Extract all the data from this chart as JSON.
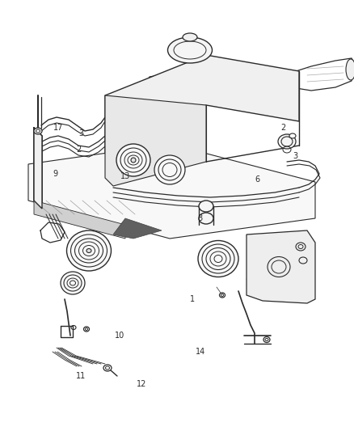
{
  "bg_color": "#ffffff",
  "line_color": "#2a2a2a",
  "label_color": "#2a2a2a",
  "fig_width": 4.38,
  "fig_height": 5.33,
  "dpi": 100,
  "label_fontsize": 7.0
}
